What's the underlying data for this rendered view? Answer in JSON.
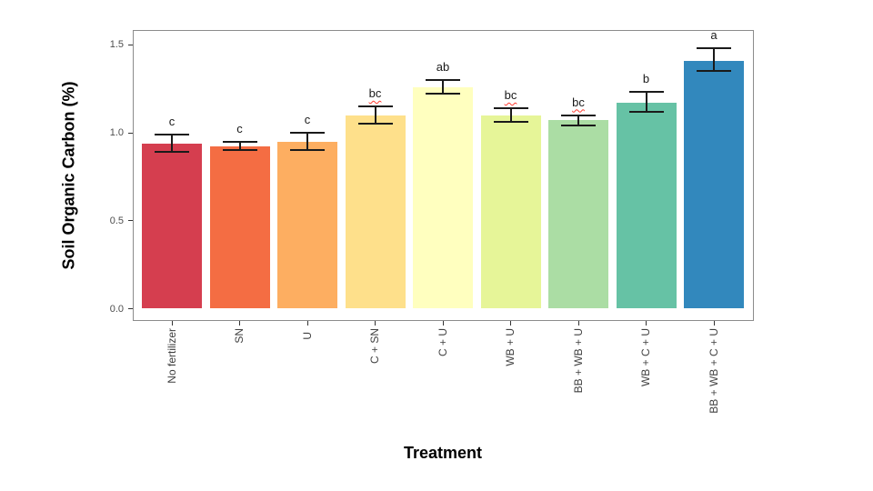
{
  "chart_data": {
    "type": "bar",
    "title": "",
    "xlabel": "Treatment",
    "ylabel": "Soil Organic Carbon (%)",
    "ylim": [
      0,
      1.5
    ],
    "yticks": [
      "0.0",
      "0.5",
      "1.0",
      "1.5"
    ],
    "grid": false,
    "legend": false,
    "palette": "Spectral",
    "categories": [
      "No fertilizer",
      "SN",
      "U",
      "C + SN",
      "C + U",
      "WB + U",
      "BB + WB + U",
      "WB + C + U",
      "BB + WB + C + U"
    ],
    "values": [
      0.94,
      0.92,
      0.95,
      1.1,
      1.26,
      1.1,
      1.07,
      1.17,
      1.41
    ],
    "error_low": [
      0.89,
      0.9,
      0.9,
      1.05,
      1.22,
      1.06,
      1.04,
      1.12,
      1.35
    ],
    "error_high": [
      0.99,
      0.95,
      1.0,
      1.15,
      1.3,
      1.14,
      1.1,
      1.23,
      1.48
    ],
    "sig_letters": [
      "c",
      "c",
      "c",
      "bc",
      "ab",
      "bc",
      "bc",
      "b",
      "a"
    ],
    "sig_letter_red_underline": [
      false,
      false,
      false,
      true,
      false,
      true,
      true,
      false,
      false
    ],
    "bar_colors": [
      "#D53E4F",
      "#F46D43",
      "#FDAE61",
      "#FEE08B",
      "#FFFFBF",
      "#E6F598",
      "#ABDDA4",
      "#66C2A5",
      "#3288BD"
    ],
    "colors": {
      "background": "#ffffff",
      "panel_border": "#8c8c8c",
      "error_bar": "#1a1a1a",
      "axis_tick_text": "#4d4d4d",
      "axis_title_text": "#000000",
      "spellcheck_underline": "#ff3b30"
    }
  }
}
